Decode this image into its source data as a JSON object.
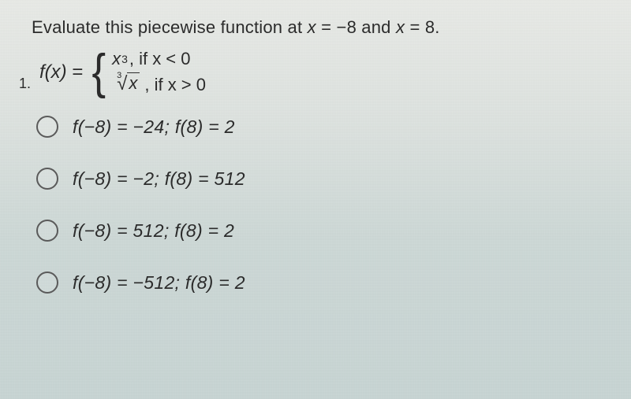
{
  "question": {
    "number": "1.",
    "prompt_prefix": "Evaluate this piecewise function at ",
    "var1": "x",
    "eq1": " = ",
    "val1": "−8",
    "conj": " and ",
    "var2": "x",
    "eq2": " = ",
    "val2": "8.",
    "fx_label": "f(x)",
    "equals": " = ",
    "case1_expr": "x",
    "case1_exp": "3",
    "case1_cond": ", if x < 0",
    "root_index": "3",
    "radicand": "x",
    "case2_cond": " , if x > 0"
  },
  "options": [
    {
      "text": "f(−8) = −24;  f(8) = 2"
    },
    {
      "text": "f(−8) = −2;  f(8) = 512"
    },
    {
      "text": "f(−8) = 512;  f(8) = 2"
    },
    {
      "text": "f(−8) = −512;  f(8) = 2"
    }
  ],
  "colors": {
    "text": "#2b2b2b",
    "radio_border": "#5a5a5a",
    "bg_top": "#e8eae6",
    "bg_bottom": "#c8d5d4"
  }
}
